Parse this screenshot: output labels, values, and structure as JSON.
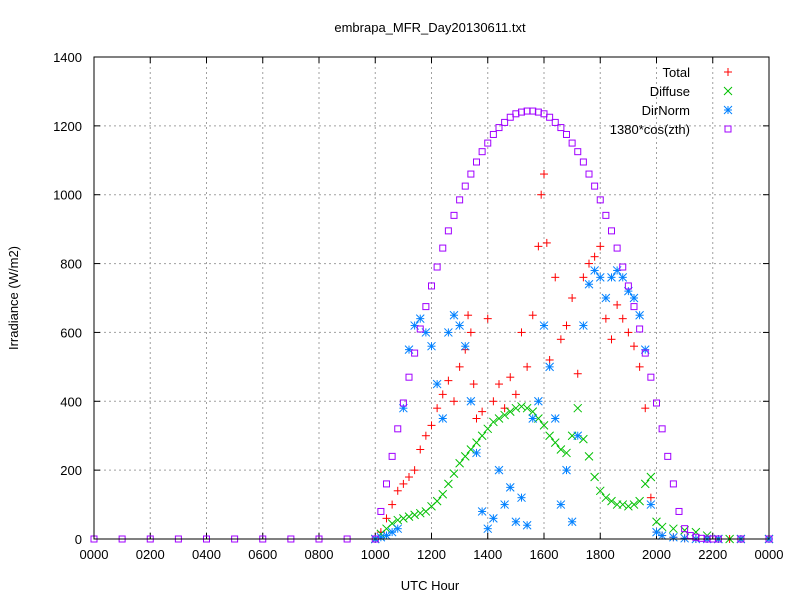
{
  "chart_data": {
    "type": "scatter",
    "title": "embrapa_MFR_Day20130611.txt",
    "xlabel": "UTC Hour",
    "ylabel": "Irradiance (W/m2)",
    "xlim": [
      0,
      24
    ],
    "ylim": [
      0,
      1400
    ],
    "grid": true,
    "legend_position": "top-right",
    "x_ticks": [
      {
        "value": 0,
        "label": "0000"
      },
      {
        "value": 2,
        "label": "0200"
      },
      {
        "value": 4,
        "label": "0400"
      },
      {
        "value": 6,
        "label": "0600"
      },
      {
        "value": 8,
        "label": "0800"
      },
      {
        "value": 10,
        "label": "1000"
      },
      {
        "value": 12,
        "label": "1200"
      },
      {
        "value": 14,
        "label": "1400"
      },
      {
        "value": 16,
        "label": "1600"
      },
      {
        "value": 18,
        "label": "1800"
      },
      {
        "value": 20,
        "label": "2000"
      },
      {
        "value": 22,
        "label": "2200"
      },
      {
        "value": 24,
        "label": "0000"
      }
    ],
    "y_ticks": [
      {
        "value": 0,
        "label": "0"
      },
      {
        "value": 200,
        "label": "200"
      },
      {
        "value": 400,
        "label": "400"
      },
      {
        "value": 600,
        "label": "600"
      },
      {
        "value": 800,
        "label": "800"
      },
      {
        "value": 1000,
        "label": "1000"
      },
      {
        "value": 1200,
        "label": "1200"
      },
      {
        "value": 1400,
        "label": "1400"
      }
    ],
    "series": [
      {
        "name": "Total",
        "color": "#ff0000",
        "marker": "plus",
        "x": [
          10.0,
          10.2,
          10.4,
          10.6,
          10.8,
          11.0,
          11.2,
          11.4,
          11.6,
          11.8,
          12.0,
          12.2,
          12.4,
          12.6,
          12.8,
          13.0,
          13.2,
          13.3,
          13.4,
          13.5,
          13.6,
          13.8,
          14.0,
          14.2,
          14.4,
          14.6,
          14.8,
          15.0,
          15.2,
          15.4,
          15.6,
          15.8,
          15.9,
          16.0,
          16.1,
          16.2,
          16.4,
          16.6,
          16.8,
          17.0,
          17.2,
          17.4,
          17.6,
          17.8,
          18.0,
          18.2,
          18.4,
          18.6,
          18.8,
          19.0,
          19.2,
          19.4,
          19.6,
          19.8,
          20.0,
          20.2,
          20.6,
          21.0,
          21.4,
          21.8,
          22.2,
          22.6,
          23.0,
          24.0
        ],
        "y": [
          0,
          20,
          60,
          100,
          140,
          160,
          180,
          200,
          260,
          300,
          330,
          380,
          420,
          460,
          400,
          500,
          550,
          650,
          600,
          450,
          350,
          370,
          640,
          400,
          450,
          380,
          470,
          420,
          600,
          500,
          650,
          850,
          1000,
          1060,
          860,
          520,
          760,
          580,
          620,
          700,
          480,
          760,
          800,
          820,
          850,
          640,
          580,
          680,
          640,
          600,
          560,
          500,
          380,
          120,
          20,
          10,
          5,
          2,
          0,
          0,
          0,
          0,
          0,
          0
        ]
      },
      {
        "name": "Diffuse",
        "color": "#00c000",
        "marker": "cross",
        "x": [
          10.0,
          10.2,
          10.4,
          10.6,
          10.8,
          11.0,
          11.2,
          11.4,
          11.6,
          11.8,
          12.0,
          12.2,
          12.4,
          12.6,
          12.8,
          13.0,
          13.2,
          13.4,
          13.6,
          13.8,
          14.0,
          14.2,
          14.4,
          14.6,
          14.8,
          15.0,
          15.2,
          15.4,
          15.6,
          15.8,
          16.0,
          16.2,
          16.4,
          16.6,
          16.8,
          17.0,
          17.2,
          17.4,
          17.6,
          17.8,
          18.0,
          18.2,
          18.4,
          18.6,
          18.8,
          19.0,
          19.2,
          19.4,
          19.6,
          19.8,
          20.0,
          20.2,
          20.6,
          21.0,
          21.4,
          21.8,
          22.2,
          22.6,
          23.0,
          24.0
        ],
        "y": [
          0,
          15,
          30,
          45,
          55,
          60,
          65,
          70,
          75,
          80,
          95,
          110,
          130,
          160,
          190,
          220,
          240,
          260,
          280,
          300,
          320,
          340,
          350,
          360,
          370,
          380,
          385,
          380,
          370,
          350,
          330,
          300,
          280,
          260,
          250,
          300,
          380,
          290,
          240,
          180,
          140,
          120,
          110,
          100,
          100,
          95,
          100,
          110,
          160,
          180,
          50,
          35,
          30,
          25,
          20,
          10,
          0,
          0,
          0,
          0
        ]
      },
      {
        "name": "DirNorm",
        "color": "#0080ff",
        "marker": "star",
        "x": [
          10.0,
          10.2,
          10.4,
          10.6,
          10.8,
          11.0,
          11.2,
          11.4,
          11.6,
          11.8,
          12.0,
          12.2,
          12.4,
          12.6,
          12.8,
          13.0,
          13.2,
          13.4,
          13.6,
          13.8,
          14.0,
          14.2,
          14.4,
          14.6,
          14.8,
          15.0,
          15.2,
          15.4,
          15.6,
          15.8,
          16.0,
          16.2,
          16.4,
          16.6,
          16.8,
          17.0,
          17.2,
          17.4,
          17.6,
          17.8,
          18.0,
          18.2,
          18.4,
          18.6,
          18.8,
          19.0,
          19.2,
          19.4,
          19.6,
          19.8,
          20.0,
          20.2,
          20.6,
          21.0,
          21.4,
          21.8,
          22.2,
          23.0,
          24.0
        ],
        "y": [
          0,
          5,
          10,
          20,
          30,
          380,
          550,
          620,
          640,
          600,
          560,
          450,
          350,
          600,
          650,
          620,
          560,
          400,
          250,
          80,
          30,
          60,
          200,
          100,
          150,
          50,
          120,
          40,
          350,
          400,
          620,
          500,
          350,
          100,
          200,
          50,
          300,
          620,
          740,
          780,
          760,
          700,
          760,
          780,
          760,
          720,
          700,
          650,
          550,
          100,
          20,
          10,
          5,
          2,
          0,
          0,
          0,
          0,
          0
        ]
      },
      {
        "name": "1380*cos(zth)",
        "color": "#a000ff",
        "marker": "square",
        "x": [
          0,
          1,
          2,
          3,
          4,
          5,
          6,
          7,
          8,
          9,
          10.0,
          10.2,
          10.4,
          10.6,
          10.8,
          11.0,
          11.2,
          11.4,
          11.6,
          11.8,
          12.0,
          12.2,
          12.4,
          12.6,
          12.8,
          13.0,
          13.2,
          13.4,
          13.6,
          13.8,
          14.0,
          14.2,
          14.4,
          14.6,
          14.8,
          15.0,
          15.2,
          15.4,
          15.6,
          15.8,
          16.0,
          16.2,
          16.4,
          16.6,
          16.8,
          17.0,
          17.2,
          17.4,
          17.6,
          17.8,
          18.0,
          18.2,
          18.4,
          18.6,
          18.8,
          19.0,
          19.2,
          19.4,
          19.6,
          19.8,
          20.0,
          20.2,
          20.4,
          20.6,
          20.8,
          21.0,
          21.2,
          21.4,
          21.6,
          21.8,
          22.0,
          22.2,
          23,
          24
        ],
        "y": [
          0,
          0,
          0,
          0,
          0,
          0,
          0,
          0,
          0,
          0,
          0,
          80,
          160,
          240,
          320,
          395,
          470,
          540,
          610,
          675,
          735,
          790,
          845,
          895,
          940,
          985,
          1025,
          1060,
          1095,
          1125,
          1150,
          1175,
          1195,
          1210,
          1225,
          1235,
          1240,
          1243,
          1243,
          1240,
          1235,
          1225,
          1210,
          1195,
          1175,
          1150,
          1125,
          1095,
          1060,
          1025,
          985,
          940,
          895,
          845,
          790,
          735,
          675,
          610,
          540,
          470,
          395,
          320,
          240,
          160,
          80,
          30,
          10,
          5,
          2,
          0,
          0,
          0,
          0,
          0
        ]
      }
    ]
  }
}
